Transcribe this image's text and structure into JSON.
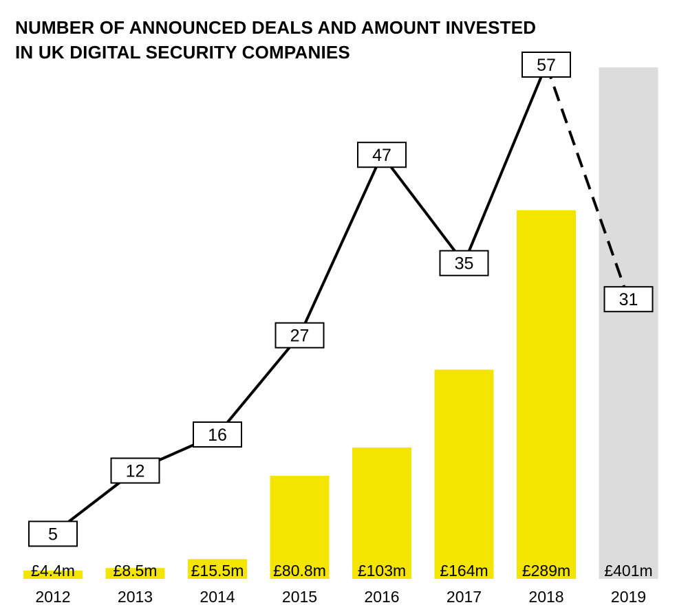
{
  "chart_data": {
    "type": "bar",
    "title_lines": [
      "NUMBER OF ANNOUNCED DEALS AND AMOUNT INVESTED",
      "IN UK DIGITAL SECURITY COMPANIES"
    ],
    "categories": [
      "2012",
      "2013",
      "2014",
      "2015",
      "2016",
      "2017",
      "2018",
      "2019"
    ],
    "bar_series": {
      "values": [
        4.4,
        8.5,
        15.5,
        80.8,
        103,
        164,
        289,
        401
      ],
      "labels": [
        "£4.4m",
        "£8.5m",
        "£15.5m",
        "£80.8m",
        "£103m",
        "£164m",
        "£289m",
        "£401m"
      ],
      "colors": [
        "#f3e500",
        "#f3e500",
        "#f3e500",
        "#f3e500",
        "#f3e500",
        "#f3e500",
        "#f3e500",
        "#dcdcdc"
      ]
    },
    "line_series": {
      "values": [
        5,
        12,
        16,
        27,
        47,
        35,
        57,
        31
      ],
      "labels": [
        "5",
        "12",
        "16",
        "27",
        "47",
        "35",
        "57",
        "31"
      ],
      "color": "#000000",
      "dashed_last_segment": true
    },
    "bar_ylim": [
      0,
      401
    ],
    "line_ylim": [
      0,
      60
    ],
    "grid": false,
    "legend": "none"
  }
}
